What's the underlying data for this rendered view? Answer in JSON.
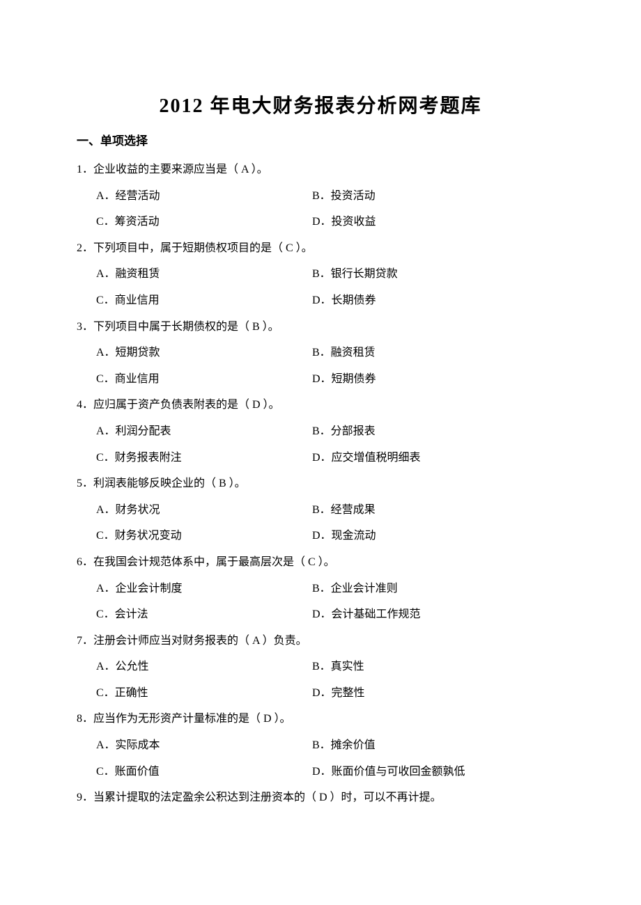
{
  "title": "2012 年电大财务报表分析网考题库",
  "section_header": "一、单项选择",
  "questions": [
    {
      "num": "1",
      "text": "．企业收益的主要来源应当是（  A  ）。",
      "optA": "A．经营活动",
      "optB": "B．投资活动",
      "optC": "C．筹资活动",
      "optD": "D．投资收益"
    },
    {
      "num": "2",
      "text": "．下列项目中，属于短期债权项目的是（ C   ）。",
      "optA": "A．融资租赁",
      "optB": "B．银行长期贷款",
      "optC": "C．商业信用",
      "optD": "D．长期债券"
    },
    {
      "num": "3",
      "text": "．下列项目中属于长期债权的是（  B   ）。",
      "optA": "A．短期贷款",
      "optB": "B．融资租赁",
      "optC": "C．商业信用",
      "optD": "D．短期债券"
    },
    {
      "num": "4",
      "text": "．应归属于资产负债表附表的是（   D   ）。",
      "optA": "A．利润分配表",
      "optB": "B．分部报表",
      "optC": "C．财务报表附注",
      "optD": "D．应交增值税明细表"
    },
    {
      "num": "5",
      "text": "．利润表能够反映企业的（  B   ）。",
      "optA": "A．财务状况",
      "optB": "B．经营成果",
      "optC": "C．财务状况变动",
      "optD": "D．现金流动"
    },
    {
      "num": "6",
      "text": "．在我国会计规范体系中，属于最高层次是（  C  ）。",
      "optA": "A．企业会计制度",
      "optB": "B．企业会计准则",
      "optC": "C．会计法",
      "optD": "D．会计基础工作规范"
    },
    {
      "num": "7",
      "text": "．注册会计师应当对财务报表的（ A   ）负责。",
      "optA": "A．公允性",
      "optB": "B．真实性",
      "optC": "C．正确性",
      "optD": "D．完整性"
    },
    {
      "num": "8",
      "text": "．应当作为无形资产计量标准的是（  D  ）。",
      "optA": "A．实际成本",
      "optB": "B．摊余价值",
      "optC": "C．账面价值",
      "optD": "D．账面价值与可收回金额孰低"
    },
    {
      "num": "9",
      "text": "．当累计提取的法定盈余公积达到注册资本的（  D  ）时，可以不再计提。"
    }
  ]
}
